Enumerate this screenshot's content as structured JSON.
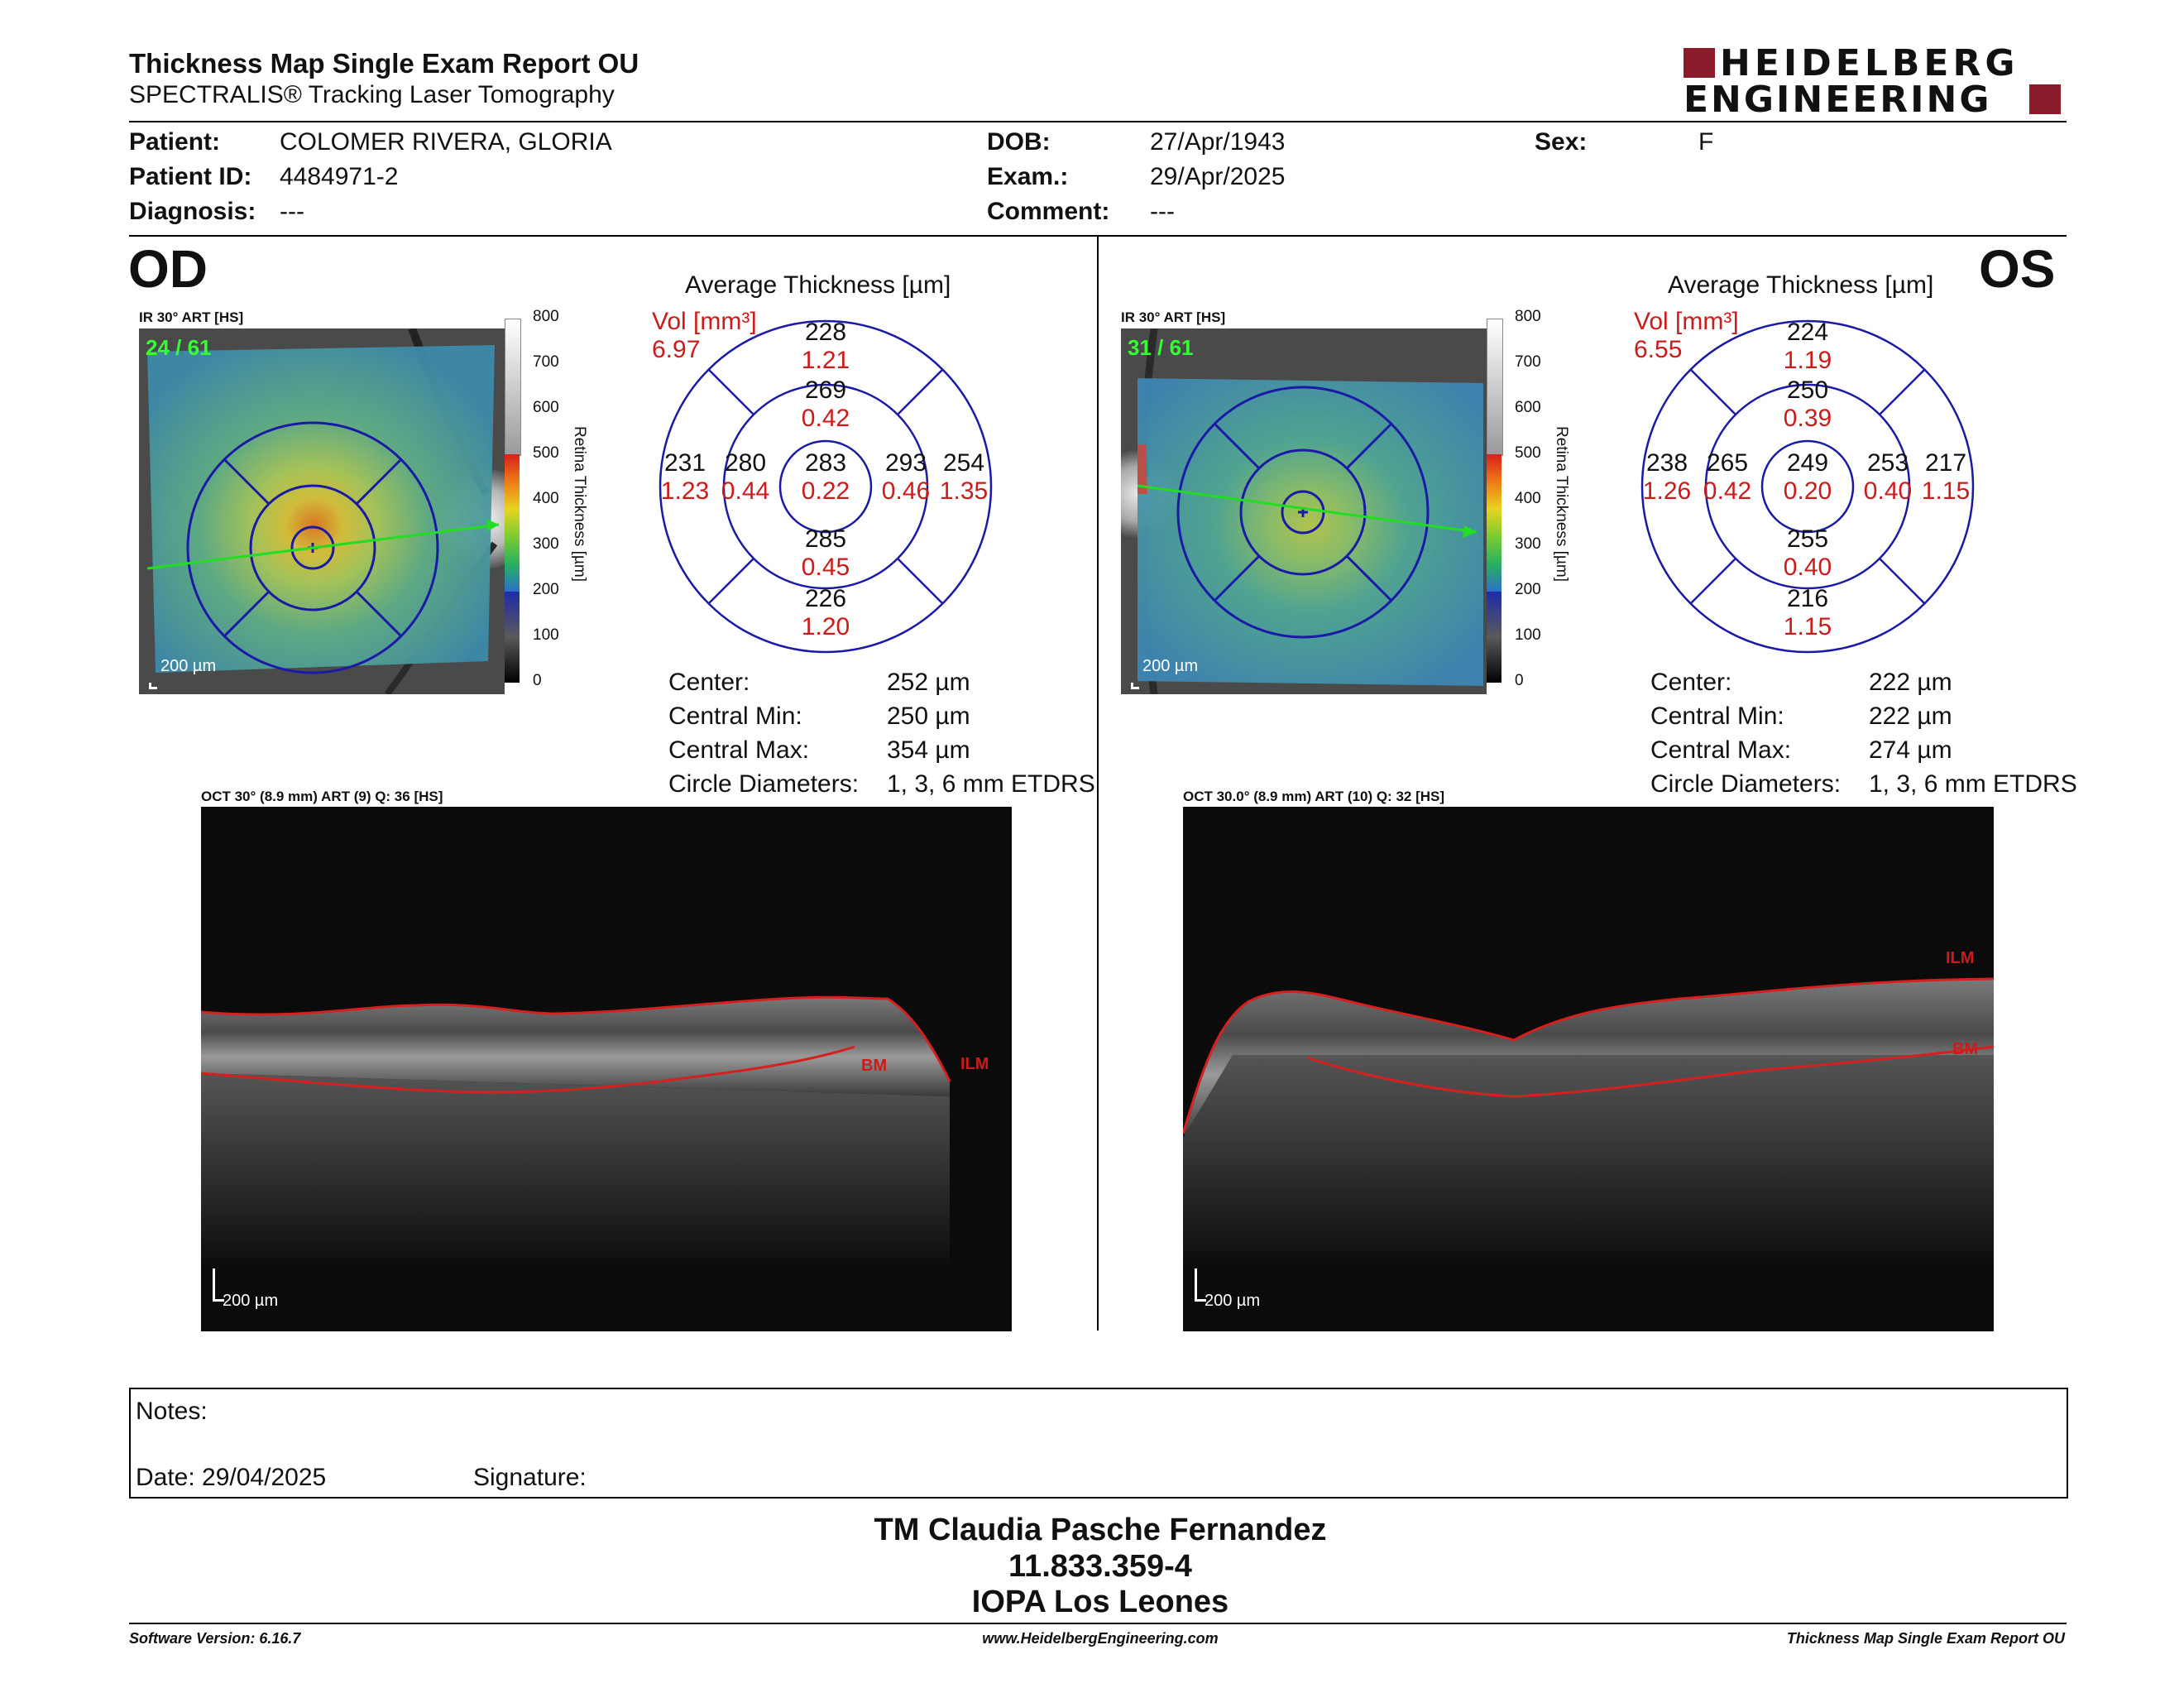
{
  "header": {
    "title": "Thickness Map Single Exam Report OU",
    "subtitle": "SPECTRALIS® Tracking Laser Tomography",
    "logo_line1": "HEIDELBERG",
    "logo_line2": "ENGINEERING"
  },
  "patient": {
    "patient_label": "Patient:",
    "patient_value": "COLOMER RIVERA, GLORIA",
    "id_label": "Patient ID:",
    "id_value": "4484971-2",
    "diagnosis_label": "Diagnosis:",
    "diagnosis_value": "---",
    "dob_label": "DOB:",
    "dob_value": "27/Apr/1943",
    "exam_label": "Exam.:",
    "exam_value": "29/Apr/2025",
    "comment_label": "Comment:",
    "comment_value": "---",
    "sex_label": "Sex:",
    "sex_value": "F"
  },
  "scale_ticks": [
    "800",
    "700",
    "600",
    "500",
    "400",
    "300",
    "200",
    "100",
    "0"
  ],
  "scale_title": "Retina  Thickness [µm]",
  "od": {
    "eye": "OD",
    "ir_caption": "IR 30° ART [HS]",
    "frame_count": "24 / 61",
    "scale_bar": "200 µm",
    "grid_title": "Average Thickness [µm]",
    "vol_label": "Vol [mm³]",
    "vol_value": "6.97",
    "sectors": {
      "outer_sup": {
        "t": "228",
        "v": "1.21"
      },
      "inner_sup": {
        "t": "269",
        "v": "0.42"
      },
      "center": {
        "t": "283",
        "v": "0.22"
      },
      "outer_left": {
        "t": "231",
        "v": "1.23"
      },
      "inner_left": {
        "t": "280",
        "v": "0.44"
      },
      "inner_right": {
        "t": "293",
        "v": "0.46"
      },
      "outer_right": {
        "t": "254",
        "v": "1.35"
      },
      "inner_inf": {
        "t": "285",
        "v": "0.45"
      },
      "outer_inf": {
        "t": "226",
        "v": "1.20"
      }
    },
    "stats": [
      {
        "label": "Center:",
        "value": "252 µm"
      },
      {
        "label": "Central Min:",
        "value": "250 µm"
      },
      {
        "label": "Central Max:",
        "value": "354 µm"
      },
      {
        "label": "Circle Diameters:",
        "value": "1, 3, 6 mm ETDRS"
      }
    ],
    "oct_caption": "OCT 30° (8.9 mm) ART (9) Q: 36 [HS]",
    "oct_scale": "200 µm",
    "ilm": "ILM",
    "bm": "BM"
  },
  "os": {
    "eye": "OS",
    "ir_caption": "IR 30° ART [HS]",
    "frame_count": "31 / 61",
    "scale_bar": "200 µm",
    "grid_title": "Average Thickness [µm]",
    "vol_label": "Vol [mm³]",
    "vol_value": "6.55",
    "sectors": {
      "outer_sup": {
        "t": "224",
        "v": "1.19"
      },
      "inner_sup": {
        "t": "250",
        "v": "0.39"
      },
      "center": {
        "t": "249",
        "v": "0.20"
      },
      "outer_left": {
        "t": "238",
        "v": "1.26"
      },
      "inner_left": {
        "t": "265",
        "v": "0.42"
      },
      "inner_right": {
        "t": "253",
        "v": "0.40"
      },
      "outer_right": {
        "t": "217",
        "v": "1.15"
      },
      "inner_inf": {
        "t": "255",
        "v": "0.40"
      },
      "outer_inf": {
        "t": "216",
        "v": "1.15"
      }
    },
    "stats": [
      {
        "label": "Center:",
        "value": "222 µm"
      },
      {
        "label": "Central Min:",
        "value": "222 µm"
      },
      {
        "label": "Central Max:",
        "value": "274 µm"
      },
      {
        "label": "Circle Diameters:",
        "value": "1, 3, 6 mm ETDRS"
      }
    ],
    "oct_caption": "OCT 30.0° (8.9 mm) ART (10) Q: 32 [HS]",
    "oct_scale": "200 µm",
    "ilm": "ILM",
    "bm": "BM"
  },
  "notes": {
    "notes_label": "Notes:",
    "date_label": "Date: 29/04/2025",
    "signature_label": "Signature:"
  },
  "footer": {
    "name": "TM Claudia Pasche Fernandez",
    "rut": "11.833.359-4",
    "org": "IOPA Los Leones",
    "software": "Software Version: 6.16.7",
    "website": "www.HeidelbergEngineering.com",
    "report": "Thickness Map Single Exam Report OU"
  },
  "colors": {
    "grid_blue": "#1a1aa6",
    "red": "#cc1b1b",
    "logo_red": "#8b1a2b"
  }
}
